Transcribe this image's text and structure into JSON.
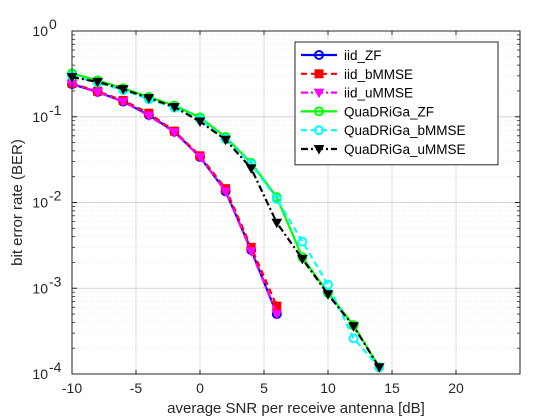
{
  "chart_data": {
    "type": "line",
    "title": "",
    "xlabel": "average SNR per receive antenna [dB]",
    "ylabel": "bit error rate (BER)",
    "xlim": [
      -10,
      25
    ],
    "ylim": [
      0.0001,
      1
    ],
    "yscale": "log",
    "grid": true,
    "minor_grid": true,
    "legend_position": "top-right",
    "x_ticks": [
      "-10",
      "-5",
      "0",
      "5",
      "10",
      "15",
      "20"
    ],
    "y_ticks": [
      {
        "base": "10",
        "exp": "0"
      },
      {
        "base": "10",
        "exp": "-1"
      },
      {
        "base": "10",
        "exp": "-2"
      },
      {
        "base": "10",
        "exp": "-3"
      },
      {
        "base": "10",
        "exp": "-4"
      }
    ],
    "series": [
      {
        "name": "iid_ZF",
        "color": "#0000ff",
        "dash": "solid",
        "marker": "circle",
        "x": [
          -10,
          -8,
          -6,
          -4,
          -2,
          0,
          2,
          4,
          6
        ],
        "y": [
          0.24,
          0.195,
          0.15,
          0.105,
          0.067,
          0.034,
          0.0135,
          0.0028,
          0.0005
        ]
      },
      {
        "name": "iid_bMMSE",
        "color": "#ff0000",
        "dash": "dashed",
        "marker": "square",
        "x": [
          -10,
          -8,
          -6,
          -4,
          -2,
          0,
          2,
          4,
          6
        ],
        "y": [
          0.245,
          0.198,
          0.155,
          0.11,
          0.068,
          0.035,
          0.0145,
          0.003,
          0.00062
        ]
      },
      {
        "name": "iid_uMMSE",
        "color": "#ff00ff",
        "dash": "dashdot",
        "marker": "triangle-down",
        "x": [
          -10,
          -8,
          -6,
          -4,
          -2,
          0,
          2,
          4,
          6
        ],
        "y": [
          0.24,
          0.193,
          0.15,
          0.103,
          0.066,
          0.034,
          0.0135,
          0.0027,
          0.0005
        ]
      },
      {
        "name": "QuaDRiGa_ZF",
        "color": "#00ff00",
        "dash": "solid",
        "marker": "circle",
        "x": [
          -10,
          -8,
          -6,
          -4,
          -2,
          0,
          2,
          4,
          6,
          8,
          10,
          12,
          14
        ],
        "y": [
          0.32,
          0.265,
          0.215,
          0.17,
          0.135,
          0.098,
          0.058,
          0.029,
          0.0115,
          0.0023,
          0.00088,
          0.00037,
          0.00012
        ]
      },
      {
        "name": "QuaDRiGa_bMMSE",
        "color": "#00ffff",
        "dash": "dashed",
        "marker": "circle",
        "x": [
          -10,
          -8,
          -6,
          -4,
          -2,
          0,
          2,
          4,
          6,
          8,
          10,
          12,
          14
        ],
        "y": [
          0.3,
          0.25,
          0.205,
          0.16,
          0.128,
          0.093,
          0.055,
          0.028,
          0.011,
          0.0035,
          0.0011,
          0.00026,
          0.00012
        ]
      },
      {
        "name": "QuaDRiGa_uMMSE",
        "color": "#000000",
        "dash": "dashdot",
        "marker": "triangle-down",
        "x": [
          -10,
          -8,
          -6,
          -4,
          -2,
          0,
          2,
          4,
          6,
          8,
          10,
          12,
          14
        ],
        "y": [
          0.29,
          0.255,
          0.21,
          0.165,
          0.13,
          0.088,
          0.054,
          0.025,
          0.0058,
          0.0022,
          0.00085,
          0.00036,
          0.00012
        ]
      }
    ]
  }
}
